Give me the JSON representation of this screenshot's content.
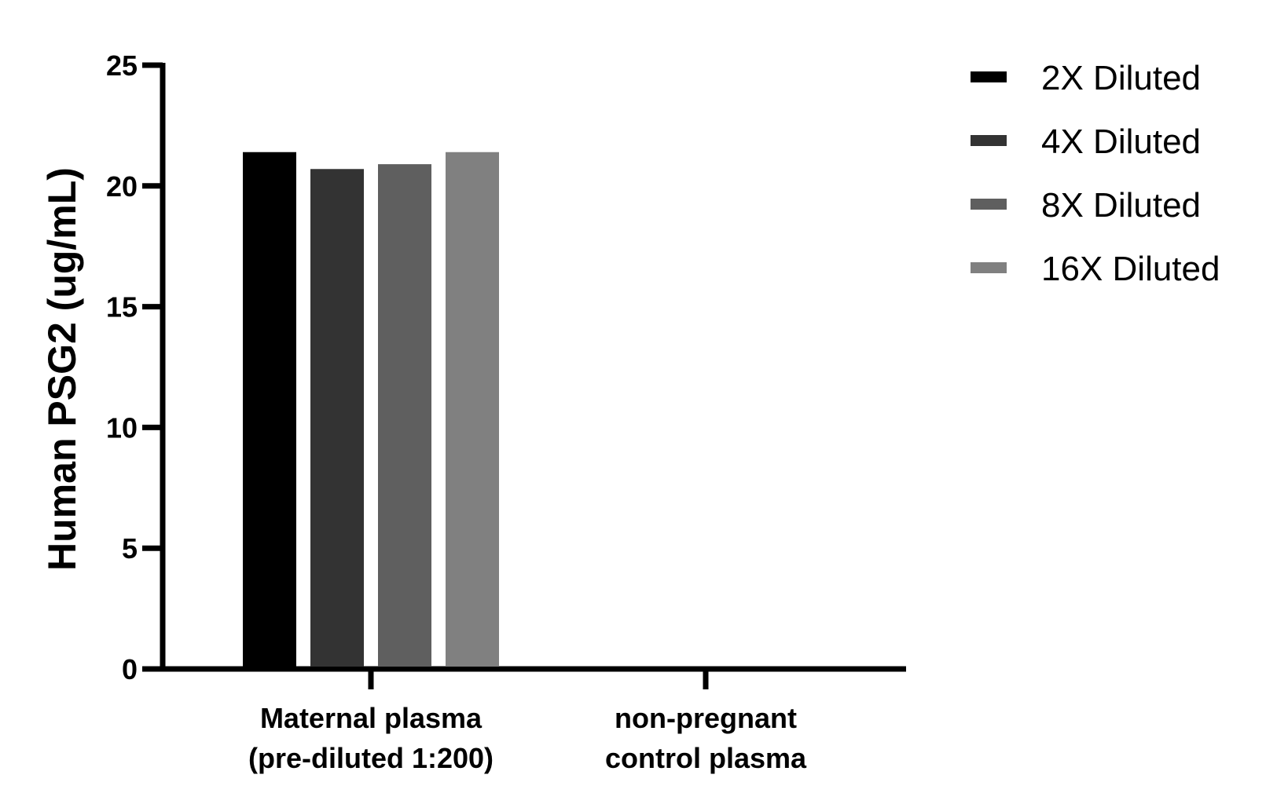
{
  "chart_data": {
    "type": "bar",
    "ylabel": "Human PSG2 (ug/mL)",
    "xlabel": "",
    "ylim": [
      0,
      25
    ],
    "yticks": [
      "0",
      "5",
      "10",
      "15",
      "20",
      "25"
    ],
    "categories": [
      [
        "Maternal plasma",
        "(pre-diluted 1:200)"
      ],
      [
        "non-pregnant",
        "control plasma"
      ]
    ],
    "series": [
      {
        "name": "2X Diluted",
        "color": "#000000",
        "values": [
          21.4,
          0
        ]
      },
      {
        "name": "4X Diluted",
        "color": "#333333",
        "values": [
          20.7,
          0
        ]
      },
      {
        "name": "8X Diluted",
        "color": "#5f5f5f",
        "values": [
          20.9,
          0
        ]
      },
      {
        "name": "16X Diluted",
        "color": "#808080",
        "values": [
          21.4,
          0
        ]
      }
    ],
    "legend": "top-right",
    "grid": false
  }
}
